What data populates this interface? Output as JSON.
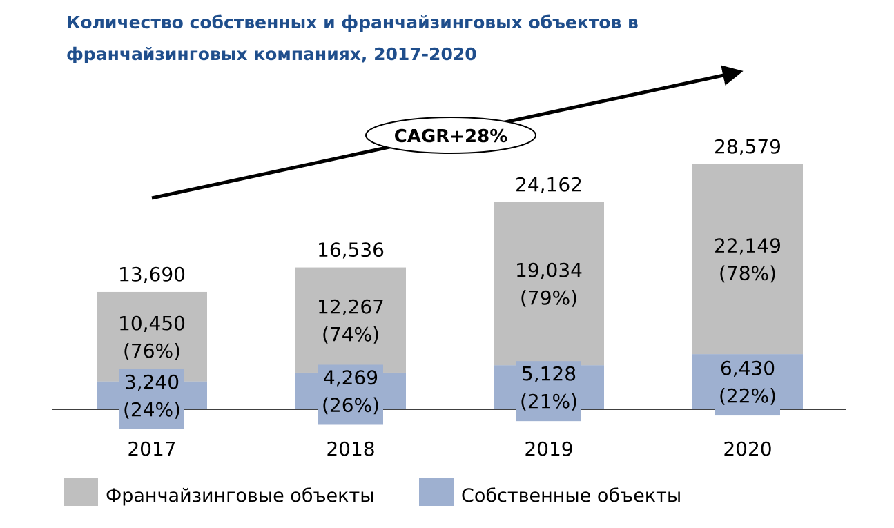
{
  "title_lines": [
    "Количество собственных и франчайзинговых объектов в",
    "франчайзинговых компаниях, 2017-2020"
  ],
  "annotation": "CAGR+28%",
  "colors": {
    "franchise": "#bfbfbf",
    "own": "#9eb0d0",
    "title": "#1f4e8c",
    "text": "#000000"
  },
  "chart_data": {
    "type": "bar",
    "stacked": true,
    "title": "Количество собственных и франчайзинговых объектов в франчайзинговых компаниях, 2017-2020",
    "categories": [
      "2017",
      "2018",
      "2019",
      "2020"
    ],
    "series": [
      {
        "name": "Собственные объекты",
        "values": [
          3240,
          4269,
          5128,
          6430
        ],
        "labels": [
          "3,240",
          "4,269",
          "5,128",
          "6,430"
        ],
        "shares": [
          "(24%)",
          "(26%)",
          "(21%)",
          "(22%)"
        ]
      },
      {
        "name": "Франчайзинговые объекты",
        "values": [
          10450,
          12267,
          19034,
          22149
        ],
        "labels": [
          "10,450",
          "12,267",
          "19,034",
          "22,149"
        ],
        "shares": [
          "(76%)",
          "(74%)",
          "(79%)",
          "(78%)"
        ]
      }
    ],
    "totals": [
      13690,
      16536,
      24162,
      28579
    ],
    "total_labels": [
      "13,690",
      "16,536",
      "24,162",
      "28,579"
    ],
    "legend": [
      "Франчайзинговые объекты",
      "Собственные объекты"
    ],
    "legend_position": "bottom",
    "grid": false,
    "ylim": [
      0,
      40000
    ]
  }
}
